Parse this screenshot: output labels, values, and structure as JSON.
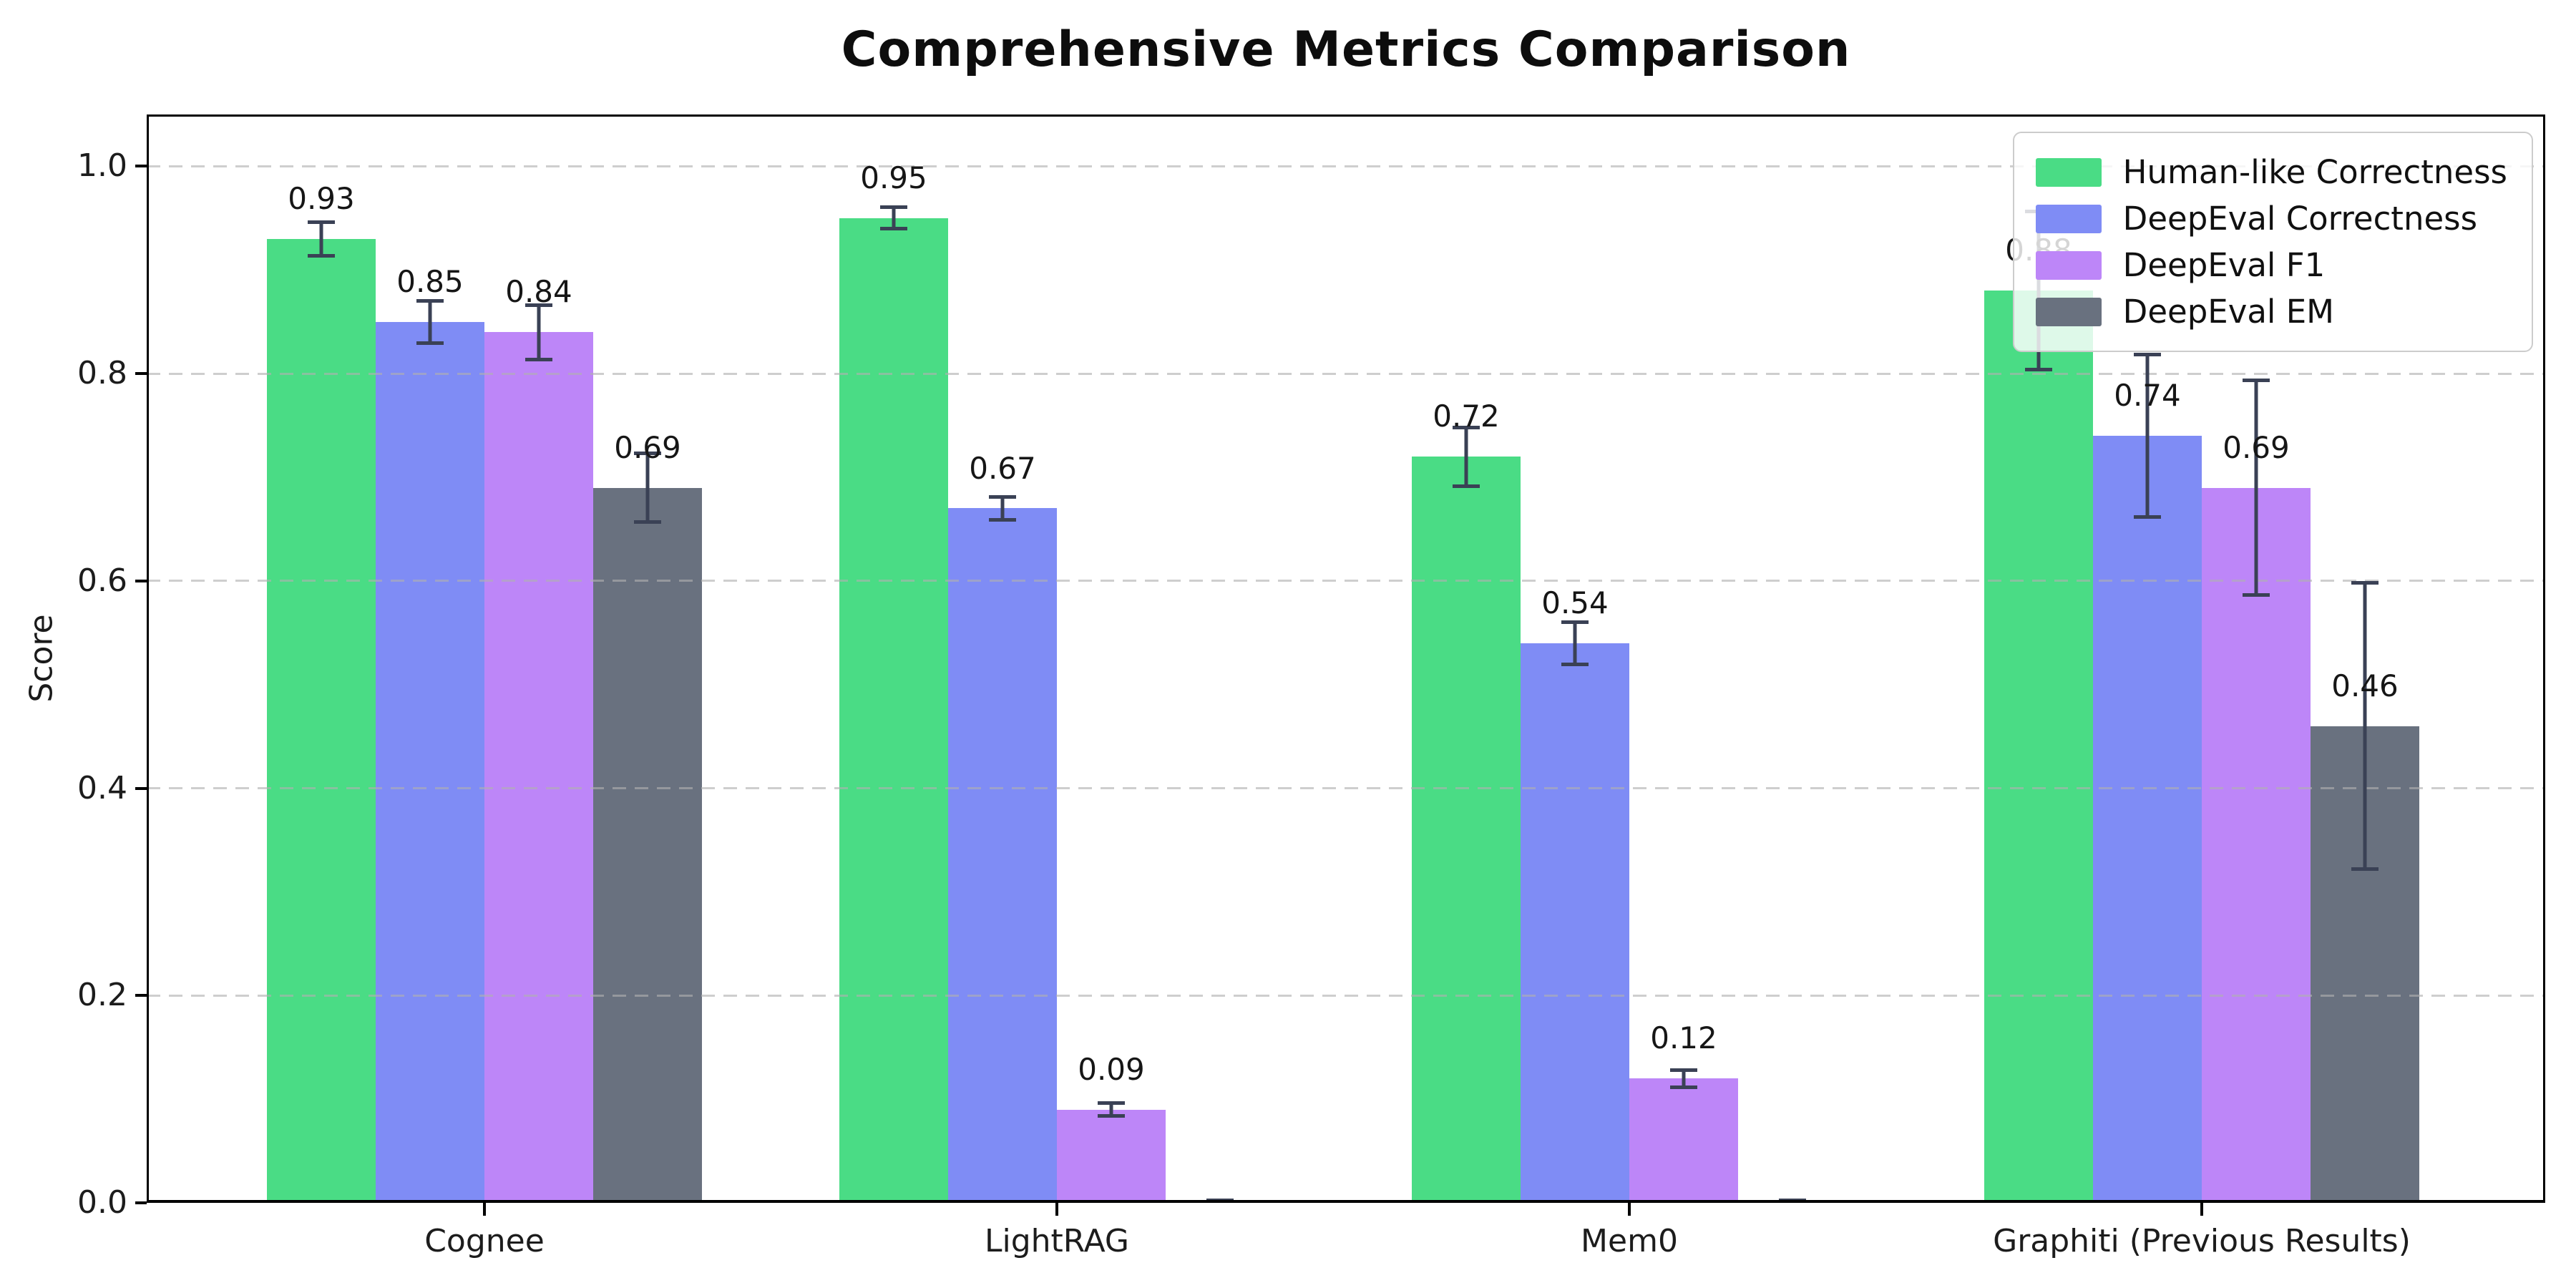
{
  "title": "Comprehensive Metrics Comparison",
  "chart_data": {
    "type": "bar",
    "title": "Comprehensive Metrics Comparison",
    "xlabel": "",
    "ylabel": "Score",
    "ylim": [
      0,
      1.05
    ],
    "yticks": [
      {
        "value": 0.0,
        "label": "0.0"
      },
      {
        "value": 0.2,
        "label": "0.2"
      },
      {
        "value": 0.4,
        "label": "0.4"
      },
      {
        "value": 0.6,
        "label": "0.6"
      },
      {
        "value": 0.8,
        "label": "0.8"
      },
      {
        "value": 1.0,
        "label": "1.0"
      }
    ],
    "grid": {
      "axis": "y",
      "style": "dashed",
      "color": "#b0b0b0",
      "drawn_above_bars": true
    },
    "legend_position": "upper right",
    "error_bar_color": "#3a4155",
    "categories": [
      "Cognee",
      "LightRAG",
      "Mem0",
      "Graphiti (Previous Results)"
    ],
    "series": [
      {
        "name": "Human-like Correctness",
        "color": "#4adc85",
        "values": [
          0.93,
          0.95,
          0.72,
          0.88
        ],
        "value_labels": [
          "0.93",
          "0.95",
          "0.72",
          "0.88"
        ],
        "errors": [
          0.018,
          0.012,
          0.03,
          0.078
        ]
      },
      {
        "name": "DeepEval Correctness",
        "color": "#7f8cf5",
        "values": [
          0.85,
          0.67,
          0.54,
          0.74
        ],
        "value_labels": [
          "0.85",
          "0.67",
          "0.54",
          "0.74"
        ],
        "errors": [
          0.022,
          0.013,
          0.022,
          0.08
        ]
      },
      {
        "name": "DeepEval F1",
        "color": "#bd86f8",
        "values": [
          0.84,
          0.09,
          0.12,
          0.69
        ],
        "value_labels": [
          "0.84",
          "0.09",
          "0.12",
          "0.69"
        ],
        "errors": [
          0.028,
          0.008,
          0.01,
          0.105
        ]
      },
      {
        "name": "DeepEval EM",
        "color": "#69717f",
        "values": [
          0.69,
          0.0,
          0.0,
          0.46
        ],
        "value_labels": [
          "0.69",
          "",
          "",
          "0.46"
        ],
        "errors": [
          0.035,
          0.004,
          0.004,
          0.14
        ]
      }
    ]
  }
}
